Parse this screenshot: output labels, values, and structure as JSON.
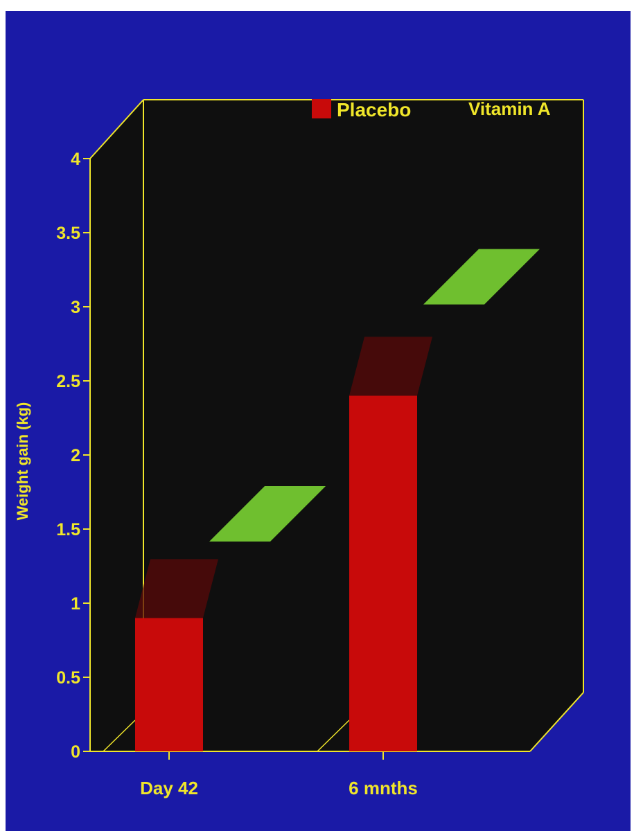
{
  "chart_data": {
    "type": "bar",
    "ylabel": "Weight gain (kg)",
    "categories": [
      "Day 42",
      "6 mnths"
    ],
    "series": [
      {
        "name": "Placebo",
        "values": [
          0.9,
          2.4
        ],
        "color": "#c80a0a"
      },
      {
        "name": "Vitamin A",
        "values": [
          1.5,
          3.1
        ],
        "color": "#6fbf2f"
      }
    ],
    "ylim": [
      0,
      4
    ],
    "yticks": [
      "0",
      "0.5",
      "1",
      "1.5",
      "2",
      "2.5",
      "3",
      "3.5",
      "4"
    ],
    "legend_position": "top-right",
    "background": "#1a1aa6",
    "plot_background": "#0f0f0f",
    "axis_color": "#f0e62a"
  }
}
